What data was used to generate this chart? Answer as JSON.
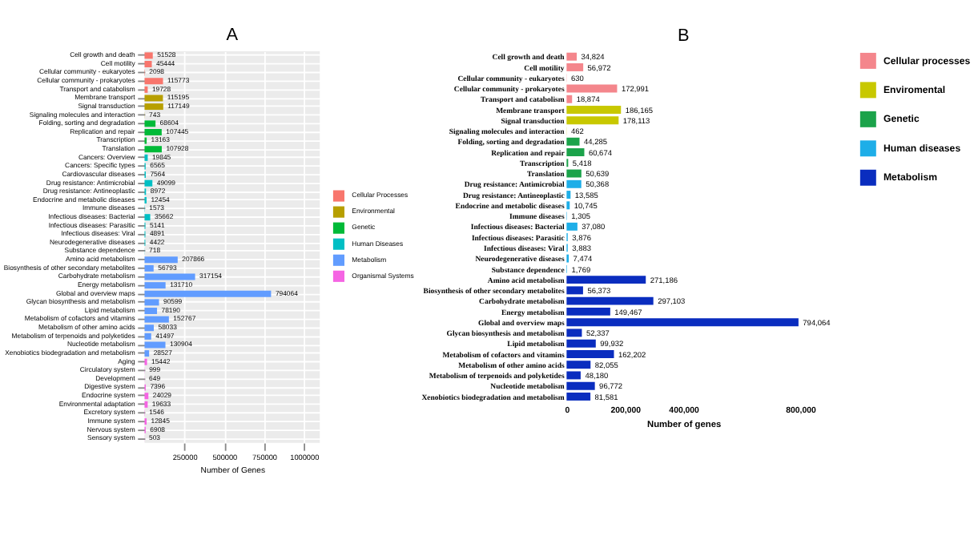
{
  "chart_data": [
    {
      "type": "bar",
      "orientation": "horizontal",
      "title": "A",
      "xlabel": "Number of Genes",
      "categories": [
        "Cell growth and death",
        "Cell motility",
        "Cellular community - eukaryotes",
        "Cellular community - prokaryotes",
        "Transport and catabolism",
        "Membrane transport",
        "Signal transduction",
        "Signaling molecules and interaction",
        "Folding, sorting and degradation",
        "Replication and repair",
        "Transcription",
        "Translation",
        "Cancers: Overview",
        "Cancers: Specific types",
        "Cardiovascular diseases",
        "Drug resistance: Antimicrobial",
        "Drug resistance: Antineoplastic",
        "Endocrine and metabolic diseases",
        "Immune diseases",
        "Infectious diseases: Bacterial",
        "Infectious diseases: Parasitic",
        "Infectious diseases: Viral",
        "Neurodegenerative diseases",
        "Substance dependence",
        "Amino acid metabolism",
        "Biosynthesis of other secondary metabolites",
        "Carbohydrate metabolism",
        "Energy metabolism",
        "Global and overview maps",
        "Glycan biosynthesis and metabolism",
        "Lipid metabolism",
        "Metabolism of cofactors and vitamins",
        "Metabolism of other amino acids",
        "Metabolism of terpenoids and polyketides",
        "Nucleotide metabolism",
        "Xenobiotics biodegradation and metabolism",
        "Aging",
        "Circulatory system",
        "Development",
        "Digestive system",
        "Endocrine system",
        "Environmental adaptation",
        "Excretory system",
        "Immune system",
        "Nervous system",
        "Sensory system"
      ],
      "series": [
        {
          "name": "Cellular Processes",
          "color": "#f8766d",
          "values": [
            51528,
            45444,
            2098,
            115773,
            19728,
            null,
            null,
            null,
            null,
            null,
            null,
            null,
            null,
            null,
            null,
            null,
            null,
            null,
            null,
            null,
            null,
            null,
            null,
            null,
            null,
            null,
            null,
            null,
            null,
            null,
            null,
            null,
            null,
            null,
            null,
            null,
            null,
            null,
            null,
            null,
            null,
            null,
            null,
            null,
            null,
            null
          ]
        },
        {
          "name": "Environmental",
          "color": "#b79f00",
          "values": [
            null,
            null,
            null,
            null,
            null,
            115195,
            117149,
            743,
            null,
            null,
            null,
            null,
            null,
            null,
            null,
            null,
            null,
            null,
            null,
            null,
            null,
            null,
            null,
            null,
            null,
            null,
            null,
            null,
            null,
            null,
            null,
            null,
            null,
            null,
            null,
            null,
            null,
            null,
            null,
            null,
            null,
            null,
            null,
            null,
            null,
            null
          ]
        },
        {
          "name": "Genetic",
          "color": "#00ba38",
          "values": [
            null,
            null,
            null,
            null,
            null,
            null,
            null,
            null,
            68604,
            107445,
            13163,
            107928,
            null,
            null,
            null,
            null,
            null,
            null,
            null,
            null,
            null,
            null,
            null,
            null,
            null,
            null,
            null,
            null,
            null,
            null,
            null,
            null,
            null,
            null,
            null,
            null,
            null,
            null,
            null,
            null,
            null,
            null,
            null,
            null,
            null,
            null
          ]
        },
        {
          "name": "Human Diseases",
          "color": "#00bfc4",
          "values": [
            null,
            null,
            null,
            null,
            null,
            null,
            null,
            null,
            null,
            null,
            null,
            null,
            19845,
            6565,
            7564,
            49099,
            8972,
            12454,
            1573,
            35662,
            5141,
            4891,
            4422,
            718,
            null,
            null,
            null,
            null,
            null,
            null,
            null,
            null,
            null,
            null,
            null,
            null,
            null,
            null,
            null,
            null,
            null,
            null,
            null,
            null,
            null,
            null
          ]
        },
        {
          "name": "Metabolism",
          "color": "#619cff",
          "values": [
            null,
            null,
            null,
            null,
            null,
            null,
            null,
            null,
            null,
            null,
            null,
            null,
            null,
            null,
            null,
            null,
            null,
            null,
            null,
            null,
            null,
            null,
            null,
            null,
            207866,
            56793,
            317154,
            131710,
            794064,
            90599,
            78190,
            152767,
            58033,
            41497,
            130904,
            28527,
            null,
            null,
            null,
            null,
            null,
            null,
            null,
            null,
            null,
            null
          ]
        },
        {
          "name": "Organismal Systems",
          "color": "#f564e3",
          "values": [
            null,
            null,
            null,
            null,
            null,
            null,
            null,
            null,
            null,
            null,
            null,
            null,
            null,
            null,
            null,
            null,
            null,
            null,
            null,
            null,
            null,
            null,
            null,
            null,
            null,
            null,
            null,
            null,
            null,
            null,
            null,
            null,
            null,
            null,
            null,
            null,
            15442,
            999,
            649,
            7396,
            24029,
            19633,
            1546,
            12845,
            6908,
            503
          ]
        }
      ],
      "xlim": [
        0,
        1100000
      ],
      "xticks": [
        250000,
        500000,
        750000,
        1000000
      ],
      "grid": true,
      "legend": "right",
      "data_labels": true
    },
    {
      "type": "bar",
      "orientation": "horizontal",
      "title": "B",
      "xlabel": "Number of genes",
      "categories": [
        "Cell growth and death",
        "Cell motility",
        "Cellular community - eukaryotes",
        "Cellular community - prokaryotes",
        "Transport and catabolism",
        "Membrane transport",
        "Signal transduction",
        "Signaling molecules and interaction",
        "Folding, sorting and degradation",
        "Replication and repair",
        "Transcription",
        "Translation",
        "Drug resistance: Antimicrobial",
        "Drug resistance: Antineoplastic",
        "Endocrine and metabolic diseases",
        "Immune diseases",
        "Infectious diseases: Bacterial",
        "Infectious diseases: Parasitic",
        "Infectious diseases: Viral",
        "Neurodegenerative diseases",
        "Substance dependence",
        "Amino acid metabolism",
        "Biosynthesis of other secondary metabolites",
        "Carbohydrate metabolism",
        "Energy metabolism",
        "Global and overview maps",
        "Glycan biosynthesis and metabolism",
        "Lipid metabolism",
        "Metabolism of cofactors and vitamins",
        "Metabolism of other amino acids",
        "Metabolism of terpenoids and polyketides",
        "Nucleotide metabolism",
        "Xenobiotics biodegradation and metabolism"
      ],
      "series": [
        {
          "name": "Cellular processes",
          "color": "#f4868c",
          "values": [
            34824,
            56972,
            630,
            172991,
            18874,
            null,
            null,
            null,
            null,
            null,
            null,
            null,
            null,
            null,
            null,
            null,
            null,
            null,
            null,
            null,
            null,
            null,
            null,
            null,
            null,
            null,
            null,
            null,
            null,
            null,
            null,
            null,
            null
          ],
          "value_labels": [
            "34,824",
            "56,972",
            "630",
            "172,991",
            "18,874",
            null,
            null,
            null,
            null,
            null,
            null,
            null,
            null,
            null,
            null,
            null,
            null,
            null,
            null,
            null,
            null,
            null,
            null,
            null,
            null,
            null,
            null,
            null,
            null,
            null,
            null,
            null,
            null
          ]
        },
        {
          "name": "Enviromental",
          "color": "#c8c800",
          "values": [
            null,
            null,
            null,
            null,
            null,
            186165,
            178113,
            462,
            null,
            null,
            null,
            null,
            null,
            null,
            null,
            null,
            null,
            null,
            null,
            null,
            null,
            null,
            null,
            null,
            null,
            null,
            null,
            null,
            null,
            null,
            null,
            null,
            null
          ],
          "value_labels": [
            null,
            null,
            null,
            null,
            null,
            "186,165",
            "178,113",
            "462",
            null,
            null,
            null,
            null,
            null,
            null,
            null,
            null,
            null,
            null,
            null,
            null,
            null,
            null,
            null,
            null,
            null,
            null,
            null,
            null,
            null,
            null,
            null,
            null,
            null
          ]
        },
        {
          "name": "Genetic",
          "color": "#1ba34a",
          "values": [
            null,
            null,
            null,
            null,
            null,
            null,
            null,
            null,
            44285,
            60674,
            5418,
            50639,
            null,
            null,
            null,
            null,
            null,
            null,
            null,
            null,
            null,
            null,
            null,
            null,
            null,
            null,
            null,
            null,
            null,
            null,
            null,
            null,
            null
          ],
          "value_labels": [
            null,
            null,
            null,
            null,
            null,
            null,
            null,
            null,
            "44,285",
            "60,674",
            "5,418",
            "50,639",
            null,
            null,
            null,
            null,
            null,
            null,
            null,
            null,
            null,
            null,
            null,
            null,
            null,
            null,
            null,
            null,
            null,
            null,
            null,
            null,
            null
          ]
        },
        {
          "name": "Human diseases",
          "color": "#1eaee8",
          "values": [
            null,
            null,
            null,
            null,
            null,
            null,
            null,
            null,
            null,
            null,
            null,
            null,
            50368,
            13585,
            10745,
            1305,
            37080,
            3876,
            3883,
            7474,
            1769,
            null,
            null,
            null,
            null,
            null,
            null,
            null,
            null,
            null,
            null,
            null,
            null
          ],
          "value_labels": [
            null,
            null,
            null,
            null,
            null,
            null,
            null,
            null,
            null,
            null,
            null,
            null,
            "50,368",
            "13,585",
            "10,745",
            "1,305",
            "37,080",
            "3,876",
            "3,883",
            "7,474",
            "1,769",
            null,
            null,
            null,
            null,
            null,
            null,
            null,
            null,
            null,
            null,
            null,
            null
          ]
        },
        {
          "name": "Metabolism",
          "color": "#0a2dbf",
          "values": [
            null,
            null,
            null,
            null,
            null,
            null,
            null,
            null,
            null,
            null,
            null,
            null,
            null,
            null,
            null,
            null,
            null,
            null,
            null,
            null,
            null,
            271186,
            56373,
            297103,
            149467,
            794064,
            52337,
            99932,
            162202,
            82055,
            48180,
            96772,
            81581
          ],
          "value_labels": [
            null,
            null,
            null,
            null,
            null,
            null,
            null,
            null,
            null,
            null,
            null,
            null,
            null,
            null,
            null,
            null,
            null,
            null,
            null,
            null,
            null,
            "271,186",
            "56,373",
            "297,103",
            "149,467",
            "794,064",
            "52,337",
            "99,932",
            "162,202",
            "82,055",
            "48,180",
            "96,772",
            "81,581"
          ]
        }
      ],
      "xlim": [
        0,
        800000
      ],
      "xticks": [
        0,
        {
          "value": 200000,
          "label": "200,000"
        },
        {
          "value": 400000,
          "label": "400,000"
        },
        {
          "value": 800000,
          "label": "800,000"
        }
      ],
      "legend": "top right"
    }
  ]
}
